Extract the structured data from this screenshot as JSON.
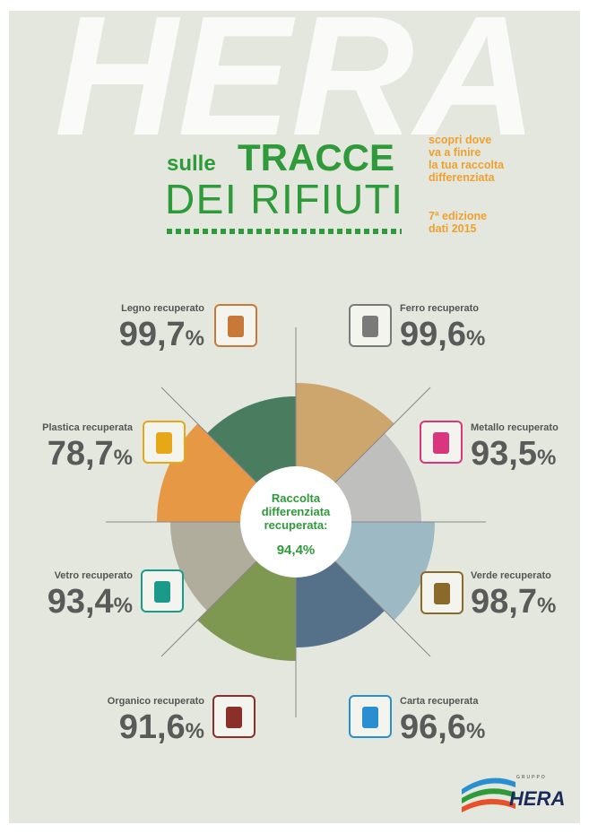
{
  "watermark": "HERA",
  "title": {
    "small": "sulle",
    "big": "TRACCE",
    "second": "DEI RIFIUTI"
  },
  "tagline": [
    "scopri dove",
    "va a finire",
    "la tua raccolta",
    "differenziata"
  ],
  "edition": [
    "7ª edizione",
    "dati 2015"
  ],
  "center": {
    "lines": [
      "Raccolta",
      "differenziata",
      "recuperata:"
    ],
    "value": "94,4%"
  },
  "items": [
    {
      "label": "Legno recuperato",
      "value": "99,7",
      "unit": "%"
    },
    {
      "label": "Ferro recuperato",
      "value": "99,6",
      "unit": "%"
    },
    {
      "label": "Plastica recuperata",
      "value": "78,7",
      "unit": "%"
    },
    {
      "label": "Metallo recuperato",
      "value": "93,5",
      "unit": "%"
    },
    {
      "label": "Vetro recuperato",
      "value": "93,4",
      "unit": "%"
    },
    {
      "label": "Verde recuperato",
      "value": "98,7",
      "unit": "%"
    },
    {
      "label": "Organico recuperato",
      "value": "91,6",
      "unit": "%"
    },
    {
      "label": "Carta recuperata",
      "value": "96,6",
      "unit": "%"
    }
  ],
  "logo": {
    "group": "GRUPPO",
    "name": "HERA"
  }
}
